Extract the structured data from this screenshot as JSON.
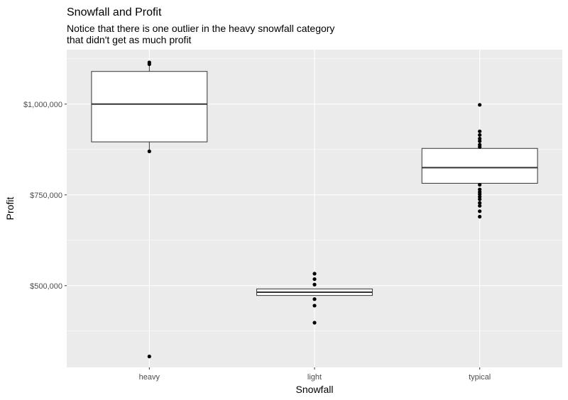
{
  "chart_data": {
    "type": "boxplot",
    "title": "Snowfall and Profit",
    "subtitle_lines": [
      "Notice that there is one outlier in the heavy snowfall category",
      "that didn't get as much profit"
    ],
    "xlabel": "Snowfall",
    "ylabel": "Profit",
    "ylim": [
      275000,
      1150000
    ],
    "y_ticks": [
      500000,
      750000,
      1000000
    ],
    "y_tick_labels": [
      "$500,000",
      "$750,000",
      "$1,000,000"
    ],
    "grid": true,
    "categories": [
      "heavy",
      "light",
      "typical"
    ],
    "boxes": [
      {
        "category": "heavy",
        "q1": 896000,
        "median": 1000000,
        "q3": 1090000,
        "whisker_low": 870000,
        "whisker_high": 1112000,
        "points": [
          1110000,
          1115000,
          870000,
          305000
        ],
        "outliers": [
          305000
        ]
      },
      {
        "category": "light",
        "q1": 473000,
        "median": 482000,
        "q3": 491000,
        "whisker_low": 473000,
        "whisker_high": 491000,
        "points": [
          533000,
          518000,
          503000,
          463000,
          445000,
          398000
        ],
        "outliers": [
          533000,
          518000,
          503000,
          463000,
          445000,
          398000
        ]
      },
      {
        "category": "typical",
        "q1": 782000,
        "median": 825000,
        "q3": 878000,
        "whisker_low": 782000,
        "whisker_high": 878000,
        "points": [
          998000,
          925000,
          915000,
          905000,
          898000,
          888000,
          882000,
          778000,
          765000,
          758000,
          752000,
          745000,
          738000,
          728000,
          720000,
          705000,
          690000
        ],
        "outliers": [
          998000,
          925000,
          915000,
          905000,
          898000,
          888000,
          882000,
          778000,
          765000,
          758000,
          752000,
          745000,
          738000,
          728000,
          720000,
          705000,
          690000
        ]
      }
    ]
  },
  "colors": {
    "panel": "#ebebeb",
    "grid_major": "#ffffff",
    "box_fill": "#ffffff",
    "box_stroke": "#333333",
    "point": "#000000"
  }
}
